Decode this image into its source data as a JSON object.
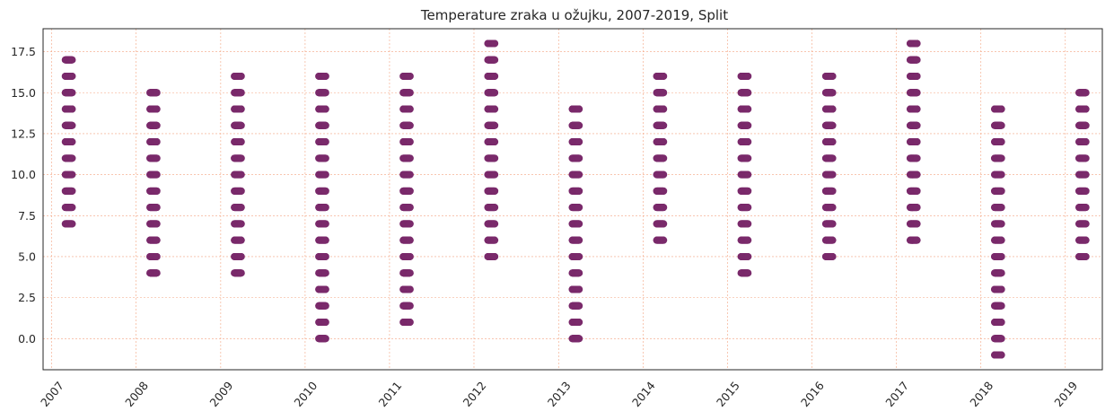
{
  "chart_data": {
    "type": "scatter",
    "title": "Temperature zraka u ožujku, 2007-2019, Split",
    "xlabel": "",
    "ylabel": "",
    "x_ticks": [
      "2007",
      "2008",
      "2009",
      "2010",
      "2011",
      "2012",
      "2013",
      "2014",
      "2015",
      "2016",
      "2017",
      "2018",
      "2019"
    ],
    "y_ticks": [
      "0.0",
      "2.5",
      "5.0",
      "7.5",
      "10.0",
      "12.5",
      "15.0",
      "17.5"
    ],
    "xlim": [
      "2006-11-25",
      "2019-06-10"
    ],
    "ylim": [
      -1.9,
      18.9
    ],
    "grid": true,
    "legend": "none",
    "colors": {
      "point": "#7a2a6b",
      "grid": "#f4a582",
      "axis": "#262626"
    },
    "series": [
      {
        "points": [
          {
            "year": 2007,
            "values": [
              17,
              16,
              15,
              14,
              13,
              12,
              11,
              10,
              9,
              8,
              7
            ]
          },
          {
            "year": 2008,
            "values": [
              15,
              14,
              13,
              12,
              11,
              10,
              9,
              8,
              7,
              6,
              5,
              4
            ]
          },
          {
            "year": 2009,
            "values": [
              16,
              15,
              14,
              13,
              12,
              11,
              10,
              9,
              8,
              7,
              6,
              5,
              4
            ]
          },
          {
            "year": 2010,
            "values": [
              16,
              15,
              14,
              13,
              12,
              11,
              10,
              9,
              8,
              7,
              6,
              5,
              4,
              3,
              2,
              1,
              0
            ]
          },
          {
            "year": 2011,
            "values": [
              16,
              15,
              14,
              13,
              12,
              11,
              10,
              9,
              8,
              7,
              6,
              5,
              4,
              3,
              2,
              1
            ]
          },
          {
            "year": 2012,
            "values": [
              18,
              17,
              16,
              15,
              14,
              13,
              12,
              11,
              10,
              9,
              8,
              7,
              6,
              5
            ]
          },
          {
            "year": 2013,
            "values": [
              14,
              13,
              12,
              11,
              10,
              9,
              8,
              7,
              6,
              5,
              4,
              3,
              2,
              1,
              0
            ]
          },
          {
            "year": 2014,
            "values": [
              16,
              15,
              14,
              13,
              12,
              11,
              10,
              9,
              8,
              7,
              6
            ]
          },
          {
            "year": 2015,
            "values": [
              16,
              15,
              14,
              13,
              12,
              11,
              10,
              9,
              8,
              7,
              6,
              5,
              4
            ]
          },
          {
            "year": 2016,
            "values": [
              16,
              15,
              14,
              13,
              12,
              11,
              10,
              9,
              8,
              7,
              6,
              5
            ]
          },
          {
            "year": 2017,
            "values": [
              18,
              17,
              16,
              15,
              14,
              13,
              12,
              11,
              10,
              9,
              8,
              7,
              6
            ]
          },
          {
            "year": 2018,
            "values": [
              14,
              13,
              12,
              11,
              10,
              9,
              8,
              7,
              6,
              5,
              4,
              3,
              2,
              1,
              0,
              -1
            ]
          },
          {
            "year": 2019,
            "values": [
              15,
              14,
              13,
              12,
              11,
              10,
              9,
              8,
              7,
              6,
              5
            ]
          }
        ]
      }
    ]
  }
}
